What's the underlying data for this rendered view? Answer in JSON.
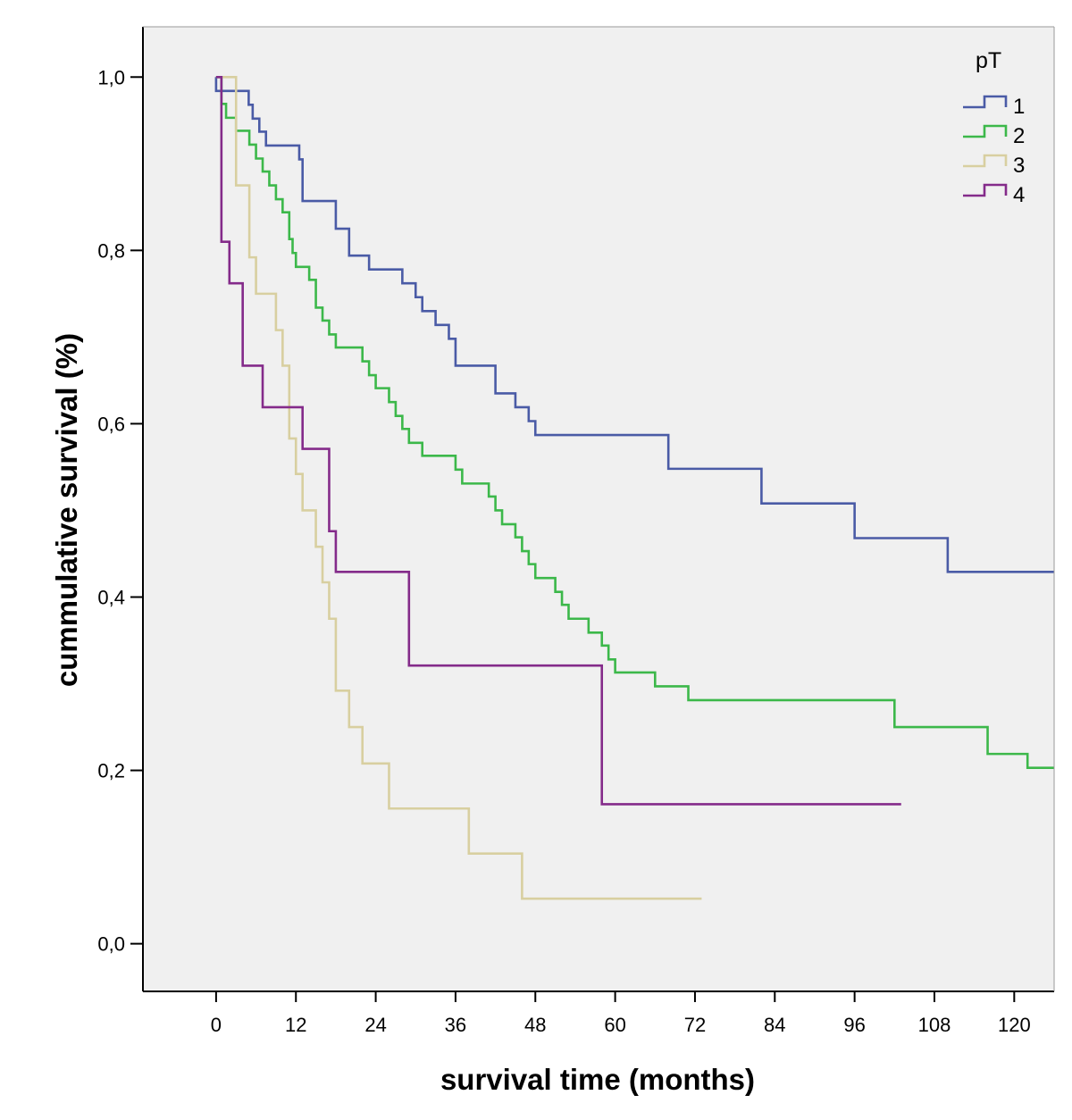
{
  "chart_data": {
    "type": "line",
    "step": "post",
    "title": "",
    "xlabel": "survival time (months)",
    "ylabel": "cummulative survival (%)",
    "xlim": [
      -11,
      126
    ],
    "ylim": [
      -0.055,
      1.058
    ],
    "xticks": [
      0,
      12,
      24,
      36,
      48,
      60,
      72,
      84,
      96,
      108,
      120
    ],
    "yticks": [
      0.0,
      0.2,
      0.4,
      0.6,
      0.8,
      1.0
    ],
    "xtick_labels": [
      "0",
      "12",
      "24",
      "36",
      "48",
      "60",
      "72",
      "84",
      "96",
      "108",
      "120"
    ],
    "ytick_labels": [
      "0,0",
      "0,2",
      "0,4",
      "0,6",
      "0,8",
      "1,0"
    ],
    "grid": false,
    "background": "#f0f0f0",
    "legend": {
      "title": "pT",
      "placement": "top-right"
    },
    "series": [
      {
        "name": "1",
        "color": "#4a5ba6",
        "x": [
          0,
          4.9,
          5.5,
          6.5,
          7.5,
          12.5,
          13,
          18,
          20,
          23,
          28,
          30,
          31,
          33,
          35,
          36,
          42,
          45,
          47,
          48,
          68,
          82,
          96,
          110,
          126
        ],
        "y": [
          0.984,
          0.968,
          0.952,
          0.937,
          0.921,
          0.905,
          0.857,
          0.825,
          0.794,
          0.778,
          0.762,
          0.746,
          0.73,
          0.714,
          0.698,
          0.667,
          0.635,
          0.619,
          0.603,
          0.587,
          0.548,
          0.508,
          0.468,
          0.429,
          0.429
        ]
      },
      {
        "name": "2",
        "color": "#3cb84a",
        "x": [
          0,
          0.8,
          1.5,
          3,
          5,
          6,
          7,
          8,
          9,
          10,
          11,
          11.5,
          12,
          14,
          15,
          16,
          17,
          18,
          22,
          23,
          24,
          26,
          27,
          28,
          29,
          31,
          36,
          37,
          41,
          42,
          43,
          45,
          46,
          47,
          48,
          51,
          52,
          53,
          56,
          58,
          59,
          60,
          66,
          71,
          102,
          116,
          122,
          126
        ],
        "y": [
          1.0,
          0.969,
          0.953,
          0.938,
          0.922,
          0.906,
          0.891,
          0.875,
          0.859,
          0.844,
          0.813,
          0.797,
          0.781,
          0.766,
          0.734,
          0.719,
          0.703,
          0.688,
          0.672,
          0.656,
          0.641,
          0.625,
          0.609,
          0.594,
          0.578,
          0.563,
          0.547,
          0.531,
          0.516,
          0.5,
          0.484,
          0.469,
          0.453,
          0.438,
          0.422,
          0.406,
          0.391,
          0.375,
          0.359,
          0.344,
          0.328,
          0.313,
          0.297,
          0.281,
          0.25,
          0.219,
          0.203,
          0.203
        ]
      },
      {
        "name": "3",
        "color": "#d8cfa0",
        "x": [
          0,
          3,
          5,
          6,
          9,
          10,
          11,
          12,
          13,
          15,
          16,
          17,
          18,
          20,
          22,
          26,
          38,
          46,
          49,
          73
        ],
        "y": [
          1.0,
          0.875,
          0.792,
          0.75,
          0.708,
          0.667,
          0.583,
          0.542,
          0.5,
          0.458,
          0.417,
          0.375,
          0.292,
          0.25,
          0.208,
          0.156,
          0.104,
          0.052,
          0.052,
          0.052
        ]
      },
      {
        "name": "4",
        "color": "#842b8a",
        "x": [
          0,
          0.8,
          2,
          4,
          7,
          13,
          17,
          18,
          29,
          58,
          103
        ],
        "y": [
          1.0,
          0.81,
          0.762,
          0.667,
          0.619,
          0.571,
          0.476,
          0.429,
          0.321,
          0.161,
          0.161
        ]
      }
    ]
  }
}
